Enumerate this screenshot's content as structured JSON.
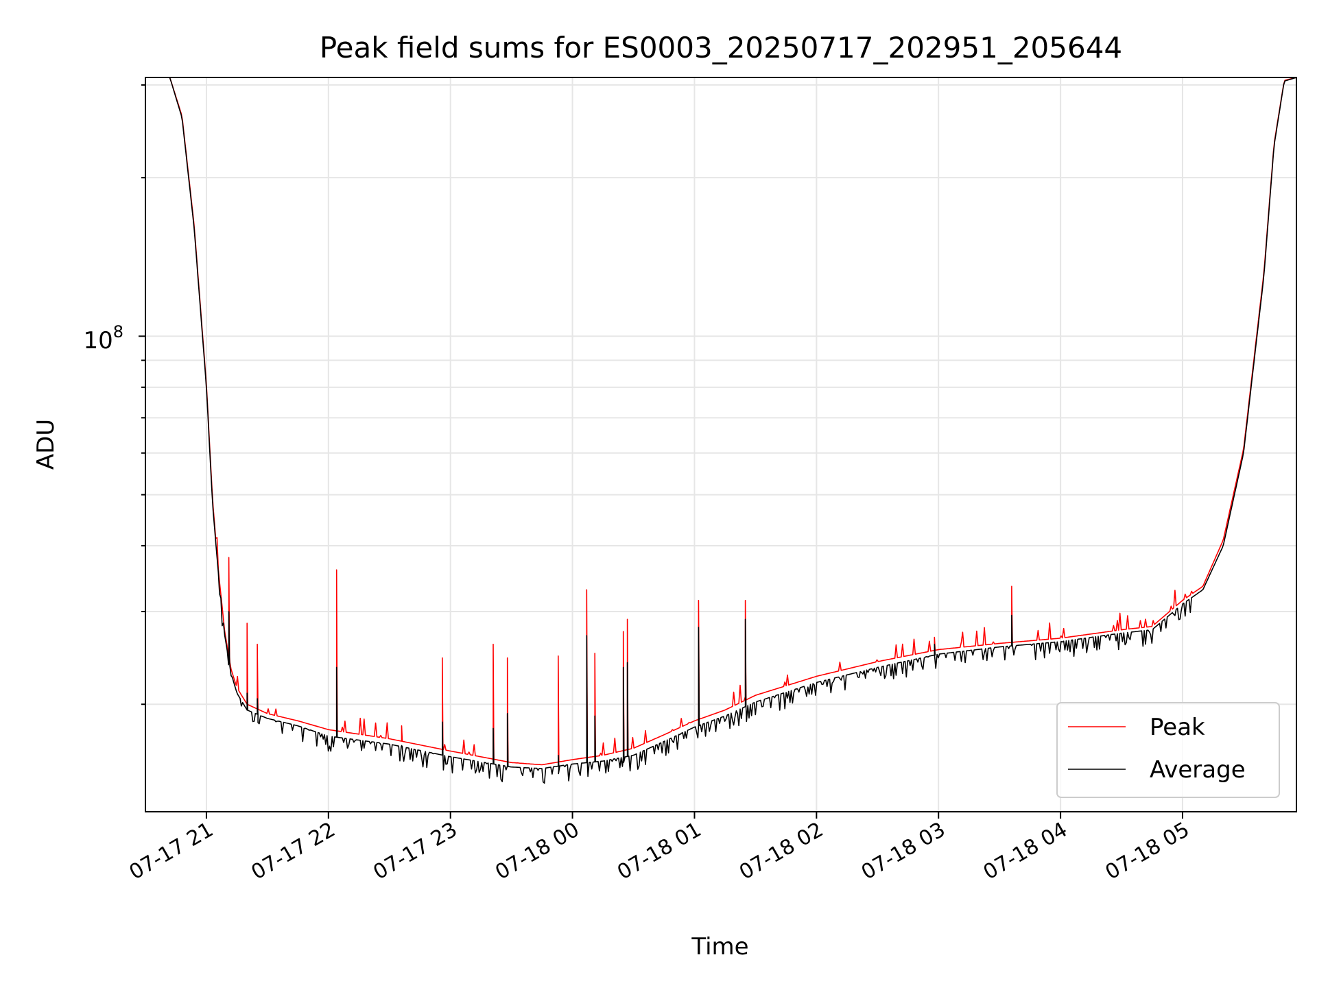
{
  "chart_data": {
    "type": "line",
    "title": "Peak field sums for ES0003_20250717_202951_205644",
    "xlabel": "Time",
    "ylabel": "ADU",
    "x_start": "2025-07-17 20:30",
    "x_end": "2025-07-18 05:56",
    "xlim": [
      "2025-07-17 20:30",
      "2025-07-18 05:56"
    ],
    "ylim": [
      12500000,
      310000000
    ],
    "y_scale": "log",
    "y_major_tick_label": {
      "base": "10",
      "exp": "8"
    },
    "y_major_tick_value": 100000000,
    "x_ticks": [
      {
        "time": "2025-07-17 21:00",
        "label": "07-17 21"
      },
      {
        "time": "2025-07-17 22:00",
        "label": "07-17 22"
      },
      {
        "time": "2025-07-17 23:00",
        "label": "07-17 23"
      },
      {
        "time": "2025-07-18 00:00",
        "label": "07-18 00"
      },
      {
        "time": "2025-07-18 01:00",
        "label": "07-18 01"
      },
      {
        "time": "2025-07-18 02:00",
        "label": "07-18 02"
      },
      {
        "time": "2025-07-18 03:00",
        "label": "07-18 03"
      },
      {
        "time": "2025-07-18 04:00",
        "label": "07-18 04"
      },
      {
        "time": "2025-07-18 05:00",
        "label": "07-18 05"
      }
    ],
    "grid": true,
    "legend_position": "bottom-right",
    "series": [
      {
        "name": "Average",
        "color": "#000000",
        "x": [
          "2025-07-17 20:30",
          "2025-07-17 20:42",
          "2025-07-17 20:48",
          "2025-07-17 20:54",
          "2025-07-17 21:00",
          "2025-07-17 21:03",
          "2025-07-17 21:06",
          "2025-07-17 21:09",
          "2025-07-17 21:12",
          "2025-07-17 21:15",
          "2025-07-17 21:20",
          "2025-07-17 21:30",
          "2025-07-17 21:45",
          "2025-07-17 22:00",
          "2025-07-17 22:30",
          "2025-07-17 23:00",
          "2025-07-17 23:30",
          "2025-07-17 23:45",
          "2025-07-18 00:00",
          "2025-07-18 00:15",
          "2025-07-18 00:30",
          "2025-07-18 00:45",
          "2025-07-18 01:00",
          "2025-07-18 01:15",
          "2025-07-18 01:30",
          "2025-07-18 02:00",
          "2025-07-18 02:30",
          "2025-07-18 03:00",
          "2025-07-18 03:30",
          "2025-07-18 04:00",
          "2025-07-18 04:30",
          "2025-07-18 04:45",
          "2025-07-18 05:00",
          "2025-07-18 05:10",
          "2025-07-18 05:20",
          "2025-07-18 05:30",
          "2025-07-18 05:40",
          "2025-07-18 05:45",
          "2025-07-18 05:50",
          "2025-07-18 05:56"
        ],
        "values": [
          310000000,
          310000000,
          260000000,
          160000000,
          80000000,
          48000000,
          35000000,
          27000000,
          23000000,
          21000000,
          19500000,
          18800000,
          18200000,
          17400000,
          16800000,
          15900000,
          15200000,
          15100000,
          15400000,
          15600000,
          16000000,
          17000000,
          18100000,
          19000000,
          20200000,
          22000000,
          23500000,
          24900000,
          25700000,
          26300000,
          27300000,
          27700000,
          31000000,
          33000000,
          40000000,
          60000000,
          130000000,
          230000000,
          305000000,
          310000000
        ]
      },
      {
        "name": "Peak",
        "color": "#ff0000",
        "x": [
          "2025-07-17 20:30",
          "2025-07-17 20:42",
          "2025-07-17 20:48",
          "2025-07-17 20:54",
          "2025-07-17 21:00",
          "2025-07-17 21:03",
          "2025-07-17 21:06",
          "2025-07-17 21:09",
          "2025-07-17 21:12",
          "2025-07-17 21:15",
          "2025-07-17 21:20",
          "2025-07-17 21:30",
          "2025-07-17 21:45",
          "2025-07-17 22:00",
          "2025-07-17 22:30",
          "2025-07-17 23:00",
          "2025-07-17 23:30",
          "2025-07-17 23:45",
          "2025-07-18 00:00",
          "2025-07-18 00:15",
          "2025-07-18 00:30",
          "2025-07-18 00:45",
          "2025-07-18 01:00",
          "2025-07-18 01:15",
          "2025-07-18 01:30",
          "2025-07-18 02:00",
          "2025-07-18 02:30",
          "2025-07-18 03:00",
          "2025-07-18 03:30",
          "2025-07-18 04:00",
          "2025-07-18 04:30",
          "2025-07-18 04:45",
          "2025-07-18 05:00",
          "2025-07-18 05:10",
          "2025-07-18 05:20",
          "2025-07-18 05:30",
          "2025-07-18 05:40",
          "2025-07-18 05:45",
          "2025-07-18 05:50",
          "2025-07-18 05:56"
        ],
        "values": [
          310000000,
          310000000,
          262000000,
          162000000,
          81000000,
          49000000,
          35500000,
          27500000,
          23400000,
          21500000,
          20000000,
          19200000,
          18600000,
          17900000,
          17200000,
          16300000,
          15500000,
          15350000,
          15700000,
          16000000,
          16500000,
          17500000,
          18600000,
          19500000,
          20800000,
          22600000,
          24100000,
          25400000,
          26100000,
          26700000,
          27700000,
          28100000,
          31500000,
          33500000,
          41000000,
          61000000,
          132000000,
          232000000,
          306000000,
          310000000
        ]
      }
    ],
    "spikes": [
      {
        "time": "2025-07-17 21:11",
        "peak": 38000000,
        "average": 30000000
      },
      {
        "time": "2025-07-17 21:20",
        "peak": 28500000,
        "average": 21000000
      },
      {
        "time": "2025-07-17 21:25",
        "peak": 26000000,
        "average": 20500000
      },
      {
        "time": "2025-07-17 22:04",
        "peak": 36000000,
        "average": 23500000
      },
      {
        "time": "2025-07-17 22:36",
        "peak": 18200000,
        "average": 16700000
      },
      {
        "time": "2025-07-17 22:56",
        "peak": 24500000,
        "average": 18500000
      },
      {
        "time": "2025-07-17 23:21",
        "peak": 26000000,
        "average": 18000000
      },
      {
        "time": "2025-07-17 23:28",
        "peak": 24500000,
        "average": 19200000
      },
      {
        "time": "2025-07-17 23:53",
        "peak": 24700000,
        "average": 16000000
      },
      {
        "time": "2025-07-18 00:07",
        "peak": 33000000,
        "average": 27000000
      },
      {
        "time": "2025-07-18 00:11",
        "peak": 25000000,
        "average": 19000000
      },
      {
        "time": "2025-07-18 00:25",
        "peak": 27500000,
        "average": 23500000
      },
      {
        "time": "2025-07-18 00:27",
        "peak": 29000000,
        "average": 24000000
      },
      {
        "time": "2025-07-18 01:02",
        "peak": 31500000,
        "average": 28000000
      },
      {
        "time": "2025-07-18 01:25",
        "peak": 31500000,
        "average": 29000000
      },
      {
        "time": "2025-07-18 02:58",
        "peak": 26800000,
        "average": 26000000
      },
      {
        "time": "2025-07-18 03:36",
        "peak": 33500000,
        "average": 29500000
      }
    ],
    "legend": [
      {
        "label": "Peak",
        "color": "#ff0000"
      },
      {
        "label": "Average",
        "color": "#000000"
      }
    ]
  }
}
